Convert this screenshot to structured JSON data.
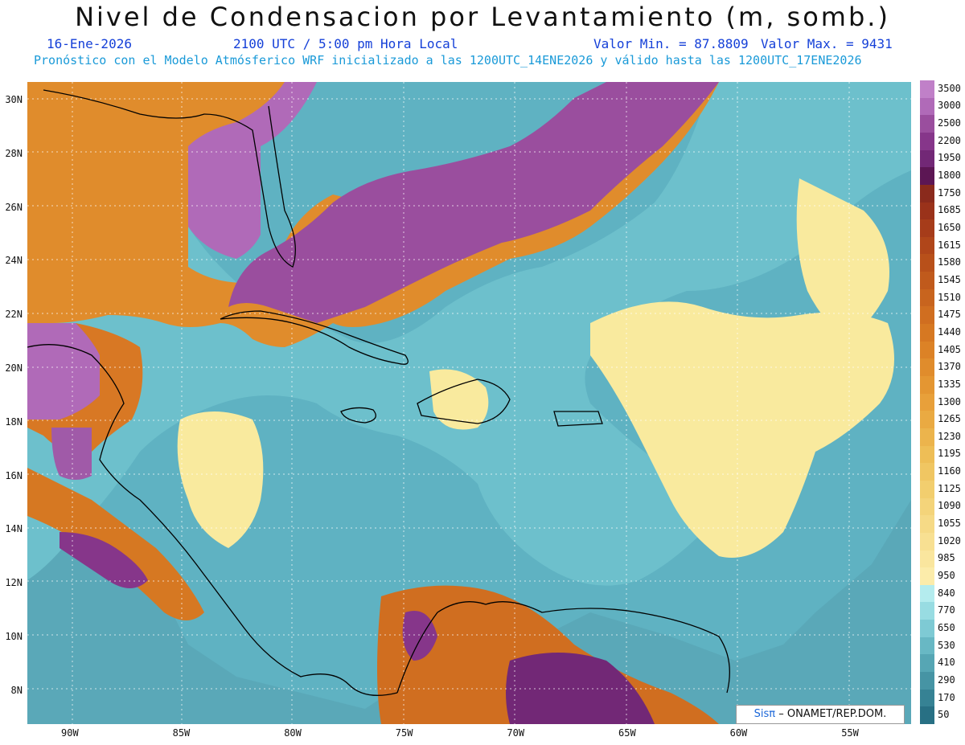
{
  "header": {
    "title": "Nivel de Condensacion por Levantamiento (m, somb.)",
    "date": "16-Ene-2026",
    "time": "2100 UTC / 5:00 pm Hora Local",
    "valmin": "Valor Min. = 87.8809",
    "valmax": "Valor Max. = 9431",
    "description": "Pronóstico con el Modelo Atmósferico WRF inicializado a las 1200UTC_14ENE2026 y válido hasta las  1200UTC_17ENE2026"
  },
  "map": {
    "lat_labels": [
      "30N",
      "28N",
      "26N",
      "24N",
      "22N",
      "20N",
      "18N",
      "16N",
      "14N",
      "12N",
      "10N",
      "8N"
    ],
    "lon_labels": [
      "90W",
      "85W",
      "80W",
      "75W",
      "70W",
      "65W",
      "60W",
      "55W"
    ]
  },
  "colorbar": {
    "labels": [
      "3500",
      "3000",
      "2500",
      "2200",
      "1950",
      "1800",
      "1750",
      "1685",
      "1650",
      "1615",
      "1580",
      "1545",
      "1510",
      "1475",
      "1440",
      "1405",
      "1370",
      "1335",
      "1300",
      "1265",
      "1230",
      "1195",
      "1160",
      "1125",
      "1090",
      "1055",
      "1020",
      "985",
      "950",
      "840",
      "770",
      "650",
      "530",
      "410",
      "290",
      "170",
      "50"
    ],
    "colors": [
      "#c080c8",
      "#b06ab8",
      "#9a4e9e",
      "#86368a",
      "#722876",
      "#5c1654",
      "#8a2a1c",
      "#9a321a",
      "#a63c1a",
      "#b0461a",
      "#b8501a",
      "#c05a1c",
      "#c8641e",
      "#d06e20",
      "#d67822",
      "#dc8226",
      "#e08c2c",
      "#e49632",
      "#e8a03a",
      "#eaaa42",
      "#ecb44c",
      "#eebe56",
      "#f0c662",
      "#f2ce6e",
      "#f4d47a",
      "#f6da86",
      "#f8e092",
      "#fae69e",
      "#fcecaa",
      "#b4ecee",
      "#98dce2",
      "#7ecad4",
      "#68b8c4",
      "#56a6b4",
      "#4694a4",
      "#368294",
      "#287084"
    ]
  },
  "credit": {
    "brand": "Sisπ",
    "text": "– ONAMET/REP.DOM."
  }
}
